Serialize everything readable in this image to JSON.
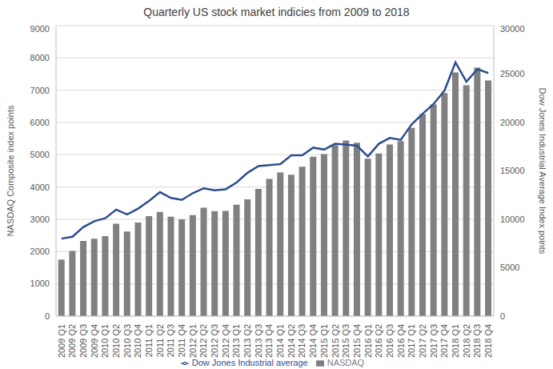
{
  "chart_data": {
    "type": "bar",
    "title": "Quarterly US stock market indicies from 2009 to 2018",
    "categories": [
      "2009 Q1",
      "2009 Q2",
      "2009 Q3",
      "2009 Q4",
      "2010 Q1",
      "2010 Q2",
      "2010 Q3",
      "2010 Q4",
      "2011 Q1",
      "2011 Q2",
      "2011 Q3",
      "2011 Q4",
      "2012 Q1",
      "2012 Q2",
      "2012 Q3",
      "2012 Q4",
      "2013 Q1",
      "2013 Q2",
      "2013 Q3",
      "2013 Q4",
      "2014 Q1",
      "2014 Q2",
      "2014 Q3",
      "2014 Q4",
      "2015 Q1",
      "2015 Q2",
      "2015 Q3",
      "2015 Q4",
      "2016 Q1",
      "2016 Q2",
      "2016 Q3",
      "2016 Q4",
      "2017 Q1",
      "2017 Q2",
      "2017 Q3",
      "2017 Q4",
      "2018 Q1",
      "2018 Q2",
      "2018 Q3",
      "2018 Q4"
    ],
    "series": [
      {
        "name": "NASDAQ",
        "type": "bar",
        "color": "#808080",
        "values": [
          1750,
          2020,
          2330,
          2400,
          2480,
          2860,
          2620,
          2900,
          3100,
          3230,
          3080,
          3000,
          3130,
          3360,
          3250,
          3260,
          3450,
          3620,
          3940,
          4250,
          4450,
          4380,
          4630,
          4940,
          5020,
          5300,
          5440,
          5370,
          4880,
          5040,
          5320,
          5420,
          5830,
          6260,
          6560,
          6910,
          7550,
          7150,
          7700,
          7300
        ]
      },
      {
        "name": "Dow Jones Industrial average",
        "type": "line",
        "axis": "y2",
        "color": "#2e4d8f",
        "marker": "none",
        "values": [
          8000,
          8200,
          9200,
          9800,
          10100,
          11000,
          10500,
          11100,
          11900,
          12800,
          12200,
          12000,
          12700,
          13200,
          13000,
          13100,
          13800,
          14800,
          15500,
          15600,
          15700,
          16600,
          16600,
          17400,
          17200,
          17800,
          17700,
          17600,
          16500,
          17800,
          18400,
          18200,
          19800,
          20900,
          21900,
          23300,
          26200,
          24200,
          25500,
          25100
        ]
      }
    ],
    "y_label": "NASDAQ Composite index points",
    "y2_label": "Dow Jones Industrial Average Index points",
    "ylim": [
      0,
      9000
    ],
    "yticks": [
      0,
      1000,
      2000,
      3000,
      4000,
      5000,
      6000,
      7000,
      8000,
      9000
    ],
    "y2lim": [
      0,
      30000
    ],
    "y2ticks": [
      0,
      5000,
      10000,
      15000,
      20000,
      25000,
      30000
    ],
    "grid": true,
    "legend": "bottom"
  }
}
